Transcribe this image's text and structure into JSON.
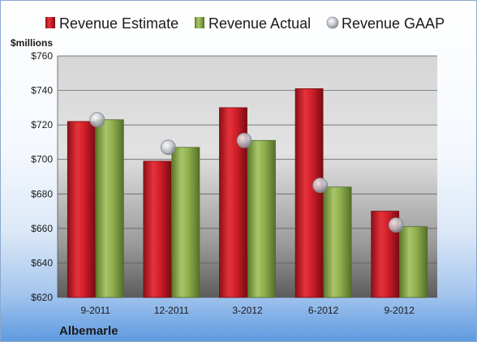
{
  "chart_data": {
    "type": "bar",
    "company": "Albemarle",
    "ylabel": "$millions",
    "categories": [
      "9-2011",
      "12-2011",
      "3-2012",
      "6-2012",
      "9-2012"
    ],
    "ylim": [
      620,
      760
    ],
    "yticks": [
      620,
      640,
      660,
      680,
      700,
      720,
      740,
      760
    ],
    "ytick_labels": [
      "$620",
      "$640",
      "$660",
      "$680",
      "$700",
      "$720",
      "$740",
      "$760"
    ],
    "grid": true,
    "legend_position": "top",
    "series": [
      {
        "name": "Revenue Estimate",
        "type": "bar",
        "color": "#d11f2a",
        "values": [
          722,
          699,
          730,
          741,
          670
        ]
      },
      {
        "name": "Revenue Actual",
        "type": "bar",
        "color": "#8fb04e",
        "values": [
          723,
          707,
          711,
          684,
          661
        ]
      },
      {
        "name": "Revenue GAAP",
        "type": "marker",
        "color": "#b9bcc4",
        "values": [
          723,
          707,
          711,
          685,
          662
        ]
      }
    ]
  }
}
